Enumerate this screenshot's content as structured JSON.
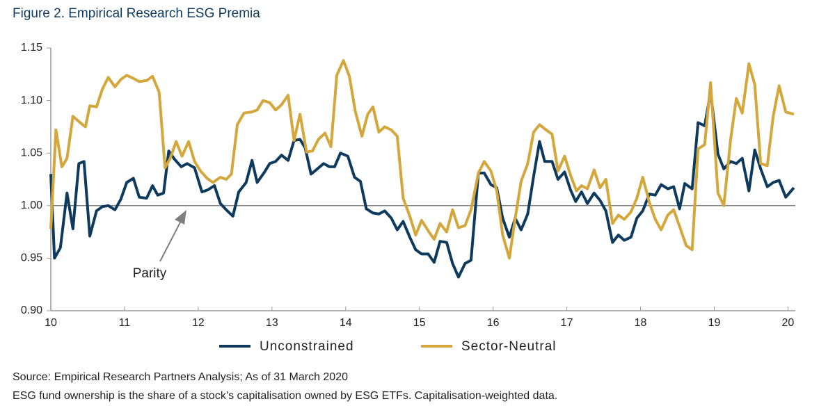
{
  "chart_data": {
    "type": "line",
    "title": "Figure 2. Empirical Research ESG Premia",
    "source": "Source: Empirical Research Partners Analysis; As of 31 March 2020",
    "note": "ESG fund ownership is the share of a stock’s capitalisation owned by ESG ETFs. Capitalisation-weighted data.",
    "annotation": "Parity",
    "reference_line": 1,
    "xlim": [
      10,
      20.1
    ],
    "xticks": [
      10,
      11,
      12,
      13,
      14,
      15,
      16,
      17,
      18,
      19,
      20
    ],
    "ylim": [
      0.9,
      1.15
    ],
    "yticks": [
      {
        "value": 0.9,
        "label": "0.90"
      },
      0.95,
      {
        "value": 1.0,
        "label": "1.00"
      },
      1.05,
      {
        "value": 1.1,
        "label": "1.10"
      },
      1.15
    ],
    "legend": "bottom",
    "series": [
      {
        "name": "Unconstrained",
        "color": "#0e3a5e",
        "x": [
          10.0,
          10.05,
          10.13,
          10.22,
          10.3,
          10.38,
          10.45,
          10.53,
          10.62,
          10.7,
          10.78,
          10.87,
          10.95,
          11.03,
          11.12,
          11.2,
          11.3,
          11.38,
          11.45,
          11.53,
          11.6,
          11.68,
          11.77,
          11.85,
          11.95,
          12.05,
          12.13,
          12.22,
          12.3,
          12.38,
          12.47,
          12.55,
          12.65,
          12.73,
          12.8,
          12.9,
          12.97,
          13.05,
          13.13,
          13.22,
          13.3,
          13.38,
          13.45,
          13.53,
          13.6,
          13.7,
          13.78,
          13.85,
          13.93,
          14.03,
          14.12,
          14.2,
          14.28,
          14.37,
          14.45,
          14.53,
          14.62,
          14.7,
          14.78,
          14.87,
          14.95,
          15.03,
          15.12,
          15.2,
          15.28,
          15.37,
          15.45,
          15.53,
          15.62,
          15.7,
          15.8,
          15.88,
          15.97,
          16.05,
          16.13,
          16.22,
          16.3,
          16.38,
          16.47,
          16.55,
          16.63,
          16.7,
          16.8,
          16.88,
          16.97,
          17.05,
          17.12,
          17.2,
          17.28,
          17.37,
          17.45,
          17.53,
          17.62,
          17.7,
          17.78,
          17.87,
          17.95,
          18.03,
          18.12,
          18.2,
          18.28,
          18.37,
          18.45,
          18.53,
          18.6,
          18.7,
          18.78,
          18.87,
          18.95,
          19.05,
          19.13,
          19.22,
          19.3,
          19.38,
          19.47,
          19.55,
          19.63,
          19.72,
          19.8,
          19.88,
          19.97,
          20.08
        ],
        "values": [
          1.03,
          0.95,
          0.96,
          1.012,
          0.978,
          1.04,
          1.042,
          0.971,
          0.995,
          0.999,
          1.0,
          0.996,
          1.006,
          1.022,
          1.026,
          1.008,
          1.007,
          1.019,
          1.01,
          1.012,
          1.052,
          1.044,
          1.037,
          1.04,
          1.036,
          1.013,
          1.015,
          1.019,
          1.002,
          0.996,
          0.99,
          1.013,
          1.022,
          1.043,
          1.022,
          1.032,
          1.04,
          1.042,
          1.048,
          1.043,
          1.062,
          1.063,
          1.055,
          1.03,
          1.034,
          1.04,
          1.037,
          1.037,
          1.05,
          1.047,
          1.027,
          1.023,
          0.997,
          0.993,
          0.992,
          0.995,
          0.988,
          0.977,
          0.985,
          0.97,
          0.958,
          0.954,
          0.954,
          0.946,
          0.966,
          0.965,
          0.945,
          0.932,
          0.945,
          0.948,
          1.031,
          1.031,
          1.02,
          1.017,
          0.988,
          0.97,
          0.988,
          0.977,
          0.992,
          1.028,
          1.061,
          1.042,
          1.042,
          1.025,
          1.032,
          1.015,
          1.004,
          1.013,
          1.002,
          1.012,
          1.005,
          0.995,
          0.965,
          0.972,
          0.967,
          0.97,
          0.988,
          0.995,
          1.011,
          1.01,
          1.02,
          1.016,
          1.018,
          0.997,
          1.021,
          1.016,
          1.079,
          1.076,
          1.108,
          1.049,
          1.035,
          1.042,
          1.04,
          1.045,
          1.014,
          1.053,
          1.035,
          1.018,
          1.022,
          1.024,
          1.008,
          1.017
        ]
      },
      {
        "name": "Sector-Neutral",
        "color": "#d4a73c",
        "x": [
          10.0,
          10.07,
          10.15,
          10.22,
          10.3,
          10.38,
          10.47,
          10.53,
          10.62,
          10.7,
          10.78,
          10.87,
          10.95,
          11.03,
          11.12,
          11.2,
          11.3,
          11.38,
          11.47,
          11.55,
          11.62,
          11.7,
          11.78,
          11.87,
          11.95,
          12.03,
          12.12,
          12.2,
          12.3,
          12.38,
          12.45,
          12.53,
          12.62,
          12.72,
          12.8,
          12.88,
          12.97,
          13.05,
          13.13,
          13.22,
          13.3,
          13.38,
          13.47,
          13.55,
          13.63,
          13.72,
          13.8,
          13.88,
          13.97,
          14.05,
          14.13,
          14.22,
          14.3,
          14.37,
          14.45,
          14.53,
          14.62,
          14.7,
          14.78,
          14.87,
          14.95,
          15.03,
          15.12,
          15.2,
          15.28,
          15.37,
          15.45,
          15.53,
          15.62,
          15.7,
          15.8,
          15.88,
          15.97,
          16.05,
          16.13,
          16.22,
          16.3,
          16.38,
          16.47,
          16.55,
          16.63,
          16.72,
          16.8,
          16.88,
          16.97,
          17.05,
          17.13,
          17.2,
          17.28,
          17.37,
          17.45,
          17.53,
          17.62,
          17.7,
          17.78,
          17.87,
          17.95,
          18.03,
          18.12,
          18.2,
          18.28,
          18.37,
          18.45,
          18.53,
          18.62,
          18.7,
          18.78,
          18.87,
          18.95,
          19.05,
          19.13,
          19.22,
          19.3,
          19.38,
          19.47,
          19.55,
          19.63,
          19.72,
          19.8,
          19.88,
          19.97,
          20.08
        ],
        "values": [
          0.978,
          1.072,
          1.037,
          1.045,
          1.085,
          1.08,
          1.075,
          1.095,
          1.094,
          1.111,
          1.122,
          1.113,
          1.12,
          1.124,
          1.121,
          1.118,
          1.119,
          1.123,
          1.108,
          1.036,
          1.045,
          1.061,
          1.047,
          1.061,
          1.042,
          1.033,
          1.026,
          1.022,
          1.027,
          1.025,
          1.03,
          1.077,
          1.088,
          1.089,
          1.091,
          1.1,
          1.098,
          1.091,
          1.096,
          1.105,
          1.062,
          1.087,
          1.051,
          1.052,
          1.063,
          1.069,
          1.056,
          1.124,
          1.138,
          1.123,
          1.09,
          1.066,
          1.087,
          1.094,
          1.07,
          1.075,
          1.072,
          1.066,
          1.007,
          0.99,
          0.972,
          0.986,
          0.976,
          0.968,
          0.983,
          0.975,
          0.996,
          0.979,
          0.981,
          0.996,
          1.031,
          1.042,
          1.033,
          1.014,
          0.972,
          0.95,
          0.988,
          1.023,
          1.04,
          1.07,
          1.077,
          1.072,
          1.068,
          1.033,
          1.047,
          1.029,
          1.014,
          1.019,
          1.016,
          1.034,
          1.017,
          1.025,
          0.983,
          0.991,
          0.987,
          0.994,
          1.007,
          1.027,
          1.003,
          0.987,
          0.977,
          0.991,
          0.996,
          0.98,
          0.962,
          0.958,
          1.054,
          1.058,
          1.117,
          1.012,
          1.0,
          1.062,
          1.102,
          1.088,
          1.135,
          1.115,
          1.04,
          1.038,
          1.085,
          1.114,
          1.089,
          1.087
        ]
      }
    ]
  }
}
